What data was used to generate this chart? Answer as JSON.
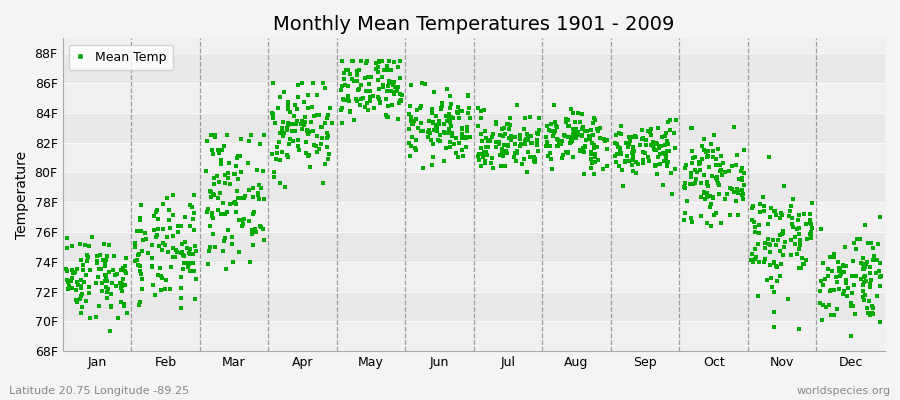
{
  "title": "Monthly Mean Temperatures 1901 - 2009",
  "ylabel": "Temperature",
  "xlabel": "",
  "subtitle_left": "Latitude 20.75 Longitude -89.25",
  "subtitle_right": "worldspecies.org",
  "ylim": [
    68,
    89
  ],
  "yticks": [
    68,
    70,
    72,
    74,
    76,
    78,
    80,
    82,
    84,
    86,
    88
  ],
  "ytick_labels": [
    "68F",
    "70F",
    "72F",
    "74F",
    "76F",
    "78F",
    "80F",
    "82F",
    "84F",
    "86F",
    "88F"
  ],
  "months": [
    "Jan",
    "Feb",
    "Mar",
    "Apr",
    "May",
    "Jun",
    "Jul",
    "Aug",
    "Sep",
    "Oct",
    "Nov",
    "Dec"
  ],
  "monthly_means": [
    73.0,
    74.5,
    78.5,
    83.0,
    85.5,
    83.0,
    82.0,
    82.2,
    81.5,
    79.5,
    75.5,
    73.0
  ],
  "monthly_stds": [
    1.4,
    1.8,
    2.2,
    1.6,
    1.3,
    1.2,
    1.0,
    1.0,
    1.0,
    1.3,
    2.0,
    1.6
  ],
  "monthly_mins": [
    68.5,
    68.5,
    73.5,
    79.0,
    80.5,
    79.0,
    79.0,
    79.5,
    78.5,
    75.5,
    67.5,
    69.0
  ],
  "monthly_maxs": [
    76.5,
    78.5,
    82.5,
    86.0,
    87.5,
    86.0,
    84.5,
    84.5,
    83.5,
    83.5,
    82.0,
    77.0
  ],
  "n_years": 109,
  "marker_color": "#00aa00",
  "marker": "s",
  "marker_size": 3.5,
  "bg_color": "#f4f4f4",
  "band_colors": [
    "#f0f0f0",
    "#e8e8e8"
  ],
  "vline_color": "#888888",
  "title_fontsize": 14,
  "label_fontsize": 10,
  "tick_fontsize": 9,
  "legend_label": "Mean Temp",
  "seed": 42
}
